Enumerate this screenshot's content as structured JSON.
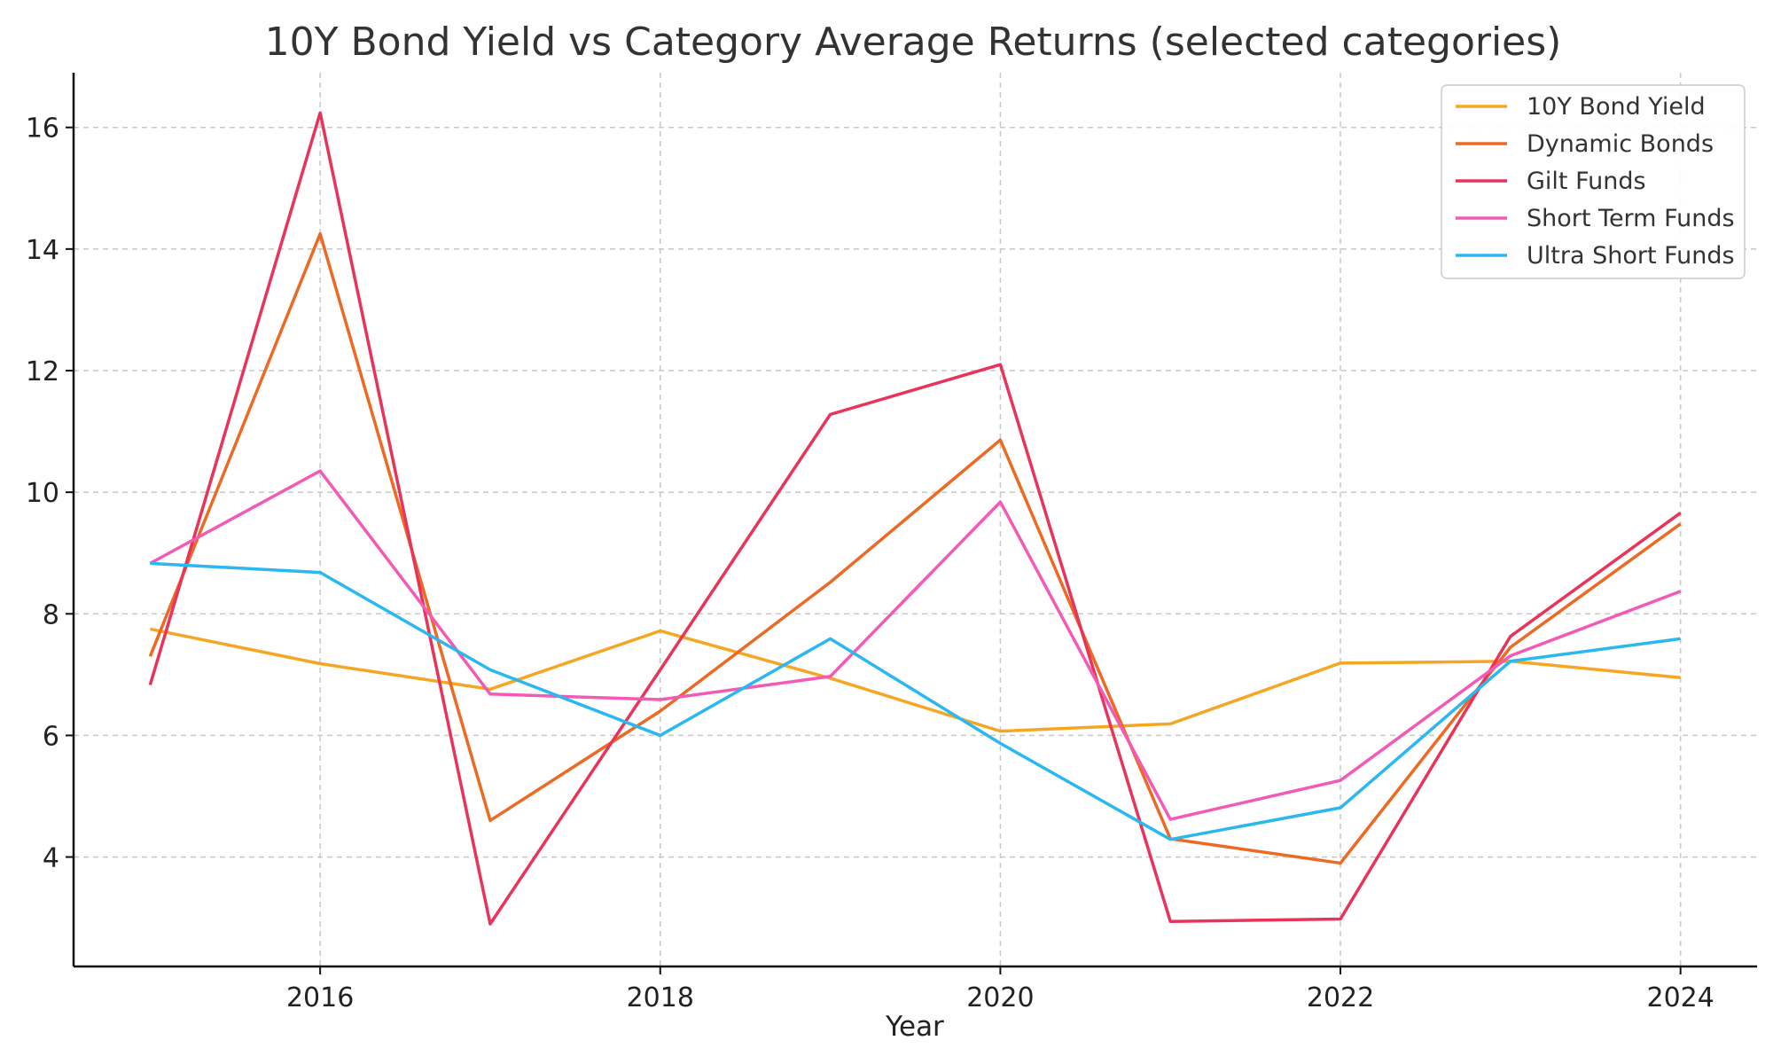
{
  "chart_data": {
    "type": "line",
    "title": "10Y Bond Yield vs Category Average Returns (selected categories)",
    "xlabel": "Year",
    "ylabel": "",
    "x": [
      2015,
      2016,
      2017,
      2018,
      2019,
      2020,
      2021,
      2022,
      2023,
      2024
    ],
    "xlim": [
      2014.55,
      2024.45
    ],
    "ylim": [
      2.2,
      16.9
    ],
    "xticks": [
      2016,
      2018,
      2020,
      2022,
      2024
    ],
    "yticks": [
      4,
      6,
      8,
      10,
      12,
      14,
      16
    ],
    "grid": true,
    "legend_position": "top-right",
    "series": [
      {
        "name": "10Y Bond Yield",
        "color": "#f5a623",
        "values": [
          7.75,
          7.18,
          6.76,
          7.72,
          6.94,
          6.07,
          6.19,
          7.19,
          7.22,
          6.95
        ]
      },
      {
        "name": "Dynamic Bonds",
        "color": "#ec6a23",
        "values": [
          7.3,
          14.25,
          4.6,
          6.4,
          8.52,
          10.86,
          4.3,
          3.9,
          7.45,
          9.48
        ]
      },
      {
        "name": "Gilt Funds",
        "color": "#e8345a",
        "values": [
          6.83,
          16.24,
          2.9,
          7.08,
          11.28,
          12.1,
          2.94,
          2.98,
          7.63,
          9.66
        ]
      },
      {
        "name": "Short Term Funds",
        "color": "#f25ab5",
        "values": [
          8.83,
          10.35,
          6.68,
          6.59,
          6.97,
          9.84,
          4.62,
          5.26,
          7.31,
          8.37
        ]
      },
      {
        "name": "Ultra Short Funds",
        "color": "#2bb7f0",
        "values": [
          8.83,
          8.68,
          7.08,
          6.0,
          7.59,
          5.87,
          4.29,
          4.81,
          7.22,
          7.59
        ]
      }
    ]
  }
}
